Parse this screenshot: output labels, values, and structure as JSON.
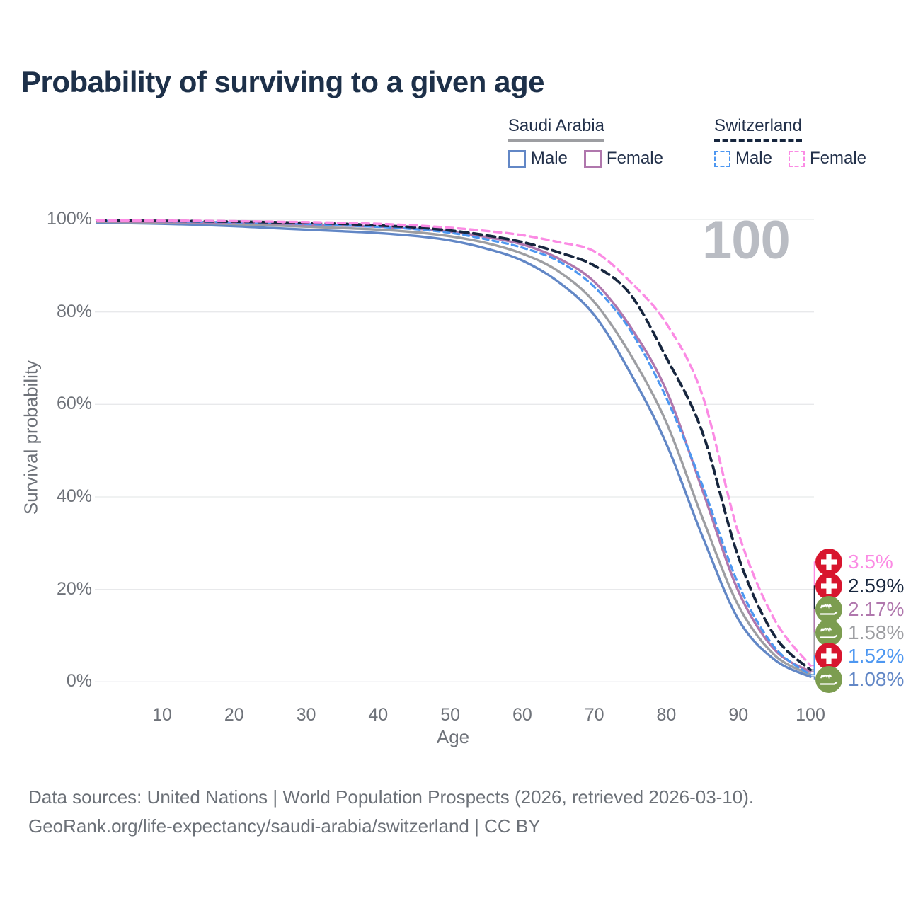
{
  "title": "Probability of surviving to a given age",
  "watermark": "100",
  "legend": {
    "groups": [
      {
        "country": "Saudi Arabia",
        "line_style": "solid",
        "underline_color": "#9d9ea2",
        "items": [
          {
            "label": "Male",
            "color": "#6287c6"
          },
          {
            "label": "Female",
            "color": "#b077ad"
          }
        ]
      },
      {
        "country": "Switzerland",
        "line_style": "dashed",
        "underline_color": "#17263e",
        "items": [
          {
            "label": "Male",
            "color": "#4d97f1"
          },
          {
            "label": "Female",
            "color": "#fb8be4"
          }
        ]
      }
    ]
  },
  "chart_data": {
    "type": "line",
    "title": "Probability of surviving to a given age",
    "xlabel": "Age",
    "ylabel": "Survival probability",
    "xlim": [
      0,
      100
    ],
    "ylim": [
      0,
      100
    ],
    "grid": "horizontal",
    "x_ticks": [
      10,
      20,
      30,
      40,
      50,
      60,
      70,
      80,
      90,
      100
    ],
    "y_ticks": [
      0,
      20,
      40,
      60,
      80,
      100
    ],
    "y_tick_suffix": "%",
    "x": [
      1,
      5,
      10,
      15,
      20,
      25,
      30,
      35,
      40,
      45,
      50,
      55,
      60,
      65,
      70,
      75,
      80,
      85,
      90,
      95,
      100
    ],
    "series": [
      {
        "name": "Switzerland Female",
        "country": "Switzerland",
        "sex": "Female",
        "style": "dashed",
        "color": "#fb8be4",
        "flag_icon": "switzerland-flag",
        "end_label": "3.5%",
        "values": [
          99.8,
          99.78,
          99.74,
          99.7,
          99.62,
          99.52,
          99.42,
          99.27,
          99.05,
          98.7,
          98.2,
          97.5,
          96.6,
          95.1,
          93.1,
          86.5,
          77.5,
          62.0,
          32.2,
          13.5,
          3.5
        ]
      },
      {
        "name": "Switzerland Both sexes",
        "country": "Switzerland",
        "sex": "Both",
        "style": "dashed",
        "color": "#17263e",
        "flag_icon": "switzerland-flag",
        "end_label": "2.59%",
        "values": [
          99.75,
          99.72,
          99.68,
          99.62,
          99.52,
          99.4,
          99.25,
          99.05,
          98.7,
          98.3,
          97.6,
          96.55,
          95.1,
          92.9,
          90.0,
          83.8,
          70.1,
          54.0,
          27.0,
          10.0,
          2.59
        ]
      },
      {
        "name": "Saudi Arabia Female",
        "country": "Saudi Arabia",
        "sex": "Female",
        "style": "solid",
        "color": "#b077ad",
        "flag_icon": "saudi-arabia-flag",
        "end_label": "2.17%",
        "values": [
          99.6,
          99.55,
          99.48,
          99.4,
          99.3,
          99.13,
          98.93,
          98.7,
          98.42,
          98.0,
          97.35,
          96.2,
          94.6,
          91.6,
          86.5,
          76.8,
          63.0,
          41.5,
          19.6,
          7.0,
          2.17
        ]
      },
      {
        "name": "Saudi Arabia Both sexes",
        "country": "Saudi Arabia",
        "sex": "Both",
        "style": "solid",
        "color": "#9d9ea2",
        "flag_icon": "saudi-arabia-flag",
        "end_label": "1.58%",
        "values": [
          99.5,
          99.42,
          99.33,
          99.2,
          99.0,
          98.72,
          98.42,
          98.13,
          97.8,
          97.25,
          96.35,
          94.9,
          92.6,
          88.8,
          82.1,
          70.8,
          56.1,
          35.5,
          16.5,
          5.8,
          1.58
        ]
      },
      {
        "name": "Switzerland Male",
        "country": "Switzerland",
        "sex": "Male",
        "style": "dashed",
        "color": "#4d97f1",
        "flag_icon": "switzerland-flag",
        "end_label": "1.52%",
        "values": [
          99.7,
          99.66,
          99.6,
          99.5,
          99.38,
          99.2,
          99.0,
          98.72,
          98.4,
          97.9,
          97.1,
          95.7,
          93.9,
          91.0,
          85.4,
          76.0,
          61.4,
          42.5,
          21.1,
          7.5,
          1.52
        ]
      },
      {
        "name": "Saudi Arabia Male",
        "country": "Saudi Arabia",
        "sex": "Male",
        "style": "solid",
        "color": "#6287c6",
        "flag_icon": "saudi-arabia-flag",
        "end_label": "1.08%",
        "values": [
          99.3,
          99.2,
          99.05,
          98.85,
          98.55,
          98.15,
          97.8,
          97.45,
          97.05,
          96.45,
          95.45,
          93.7,
          91.1,
          86.5,
          79.3,
          66.8,
          51.5,
          31.5,
          13.5,
          4.8,
          1.08
        ]
      }
    ]
  },
  "footer": {
    "line1": "Data sources: United Nations | World Population Prospects (2026, retrieved 2026-03-10).",
    "line2": "GeoRank.org/life-expectancy/saudi-arabia/switzerland | CC BY"
  }
}
